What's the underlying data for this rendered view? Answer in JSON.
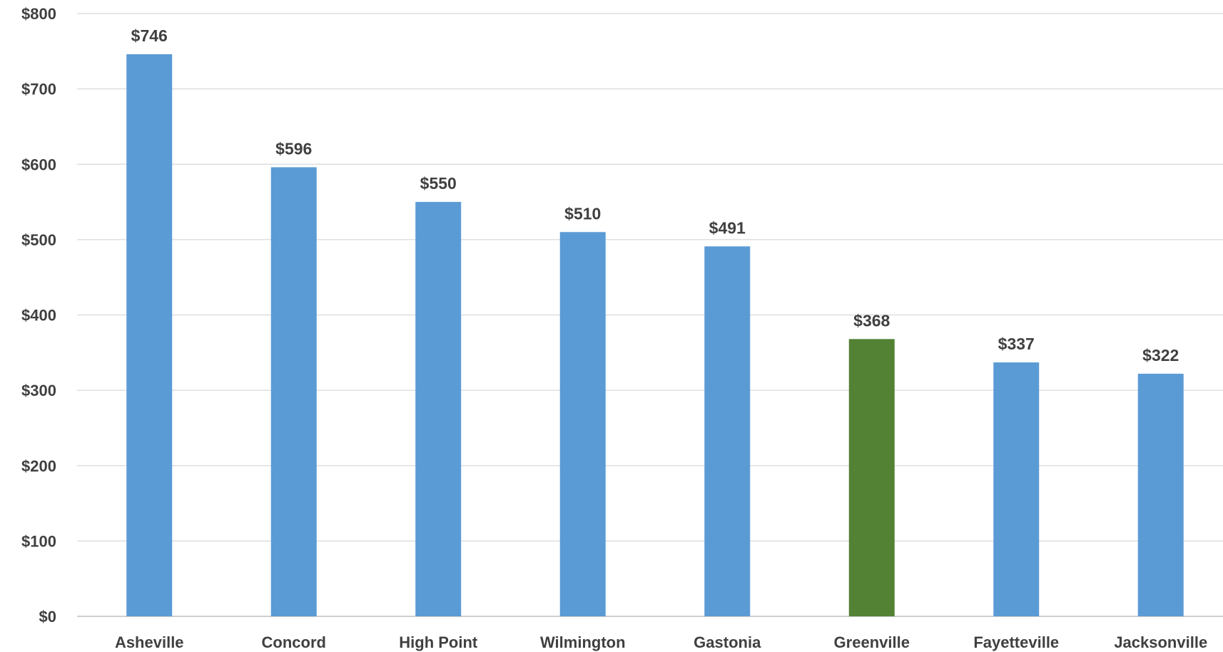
{
  "chart_data": {
    "type": "bar",
    "title": "",
    "xlabel": "",
    "ylabel": "",
    "categories": [
      "Asheville",
      "Concord",
      "High Point",
      "Wilmington",
      "Gastonia",
      "Greenville",
      "Fayetteville",
      "Jacksonville"
    ],
    "values": [
      746,
      596,
      550,
      510,
      491,
      368,
      337,
      322
    ],
    "data_labels": [
      "$746",
      "$596",
      "$550",
      "$510",
      "$491",
      "$368",
      "$337",
      "$322"
    ],
    "ylim": [
      0,
      800
    ],
    "y_ticks": [
      0,
      100,
      200,
      300,
      400,
      500,
      600,
      700,
      800
    ],
    "y_tick_labels": [
      "$0",
      "$100",
      "$200",
      "$300",
      "$400",
      "$500",
      "$600",
      "$700",
      "$800"
    ],
    "grid": true,
    "legend": "none",
    "colors": {
      "default_bar": "#5B9BD5",
      "highlight_bar": "#548235",
      "gridline": "#D9D9D9",
      "text": "#404040"
    },
    "highlighted_category": "Greenville"
  }
}
